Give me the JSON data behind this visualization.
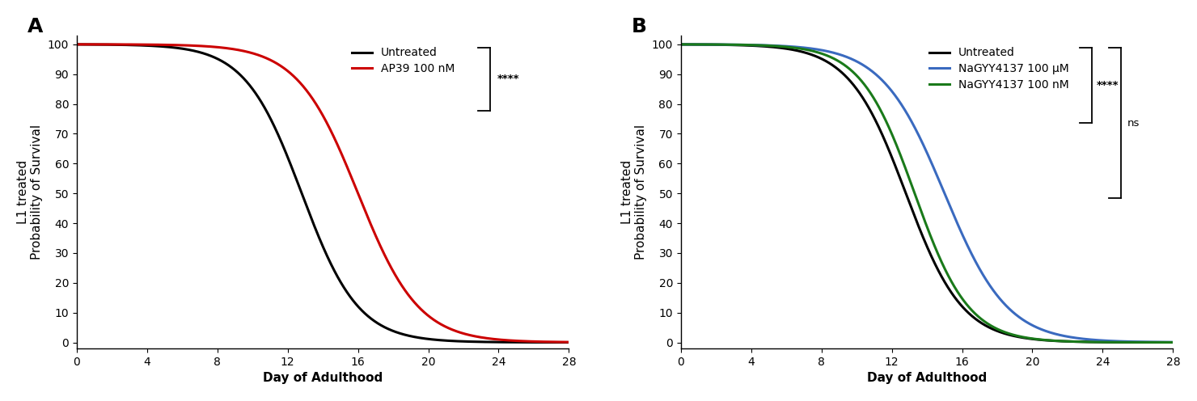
{
  "panel_A": {
    "label": "A",
    "xlabel": "Day of Adulthood",
    "ylabel": "L1 treated\nProbability of Survival",
    "xlim": [
      0,
      28
    ],
    "ylim": [
      -2,
      103
    ],
    "xticks": [
      0,
      4,
      8,
      12,
      16,
      20,
      24,
      28
    ],
    "yticks": [
      0,
      10,
      20,
      30,
      40,
      50,
      60,
      70,
      80,
      90,
      100
    ],
    "lines": [
      {
        "label": "Untreated",
        "color": "#000000",
        "midpoint": 12.8,
        "steepness": 0.62
      },
      {
        "label": "AP39 100 nM",
        "color": "#cc0000",
        "midpoint": 16.0,
        "steepness": 0.58
      }
    ]
  },
  "panel_B": {
    "label": "B",
    "xlabel": "Day of Adulthood",
    "ylabel": "L1 treated\nProbability of Survival",
    "xlim": [
      0,
      28
    ],
    "ylim": [
      -2,
      103
    ],
    "xticks": [
      0,
      4,
      8,
      12,
      16,
      20,
      24,
      28
    ],
    "yticks": [
      0,
      10,
      20,
      30,
      40,
      50,
      60,
      70,
      80,
      90,
      100
    ],
    "lines": [
      {
        "label": "Untreated",
        "color": "#000000",
        "midpoint": 12.8,
        "steepness": 0.62
      },
      {
        "label": "NaGYY4137 100 μM",
        "color": "#3a6abf",
        "midpoint": 15.0,
        "steepness": 0.56
      },
      {
        "label": "NaGYY4137 100 nM",
        "color": "#1a7a1a",
        "midpoint": 13.3,
        "steepness": 0.65
      }
    ]
  },
  "fig_width": 14.8,
  "fig_height": 4.96,
  "dpi": 100,
  "background_color": "#ffffff",
  "font_size_label": 11,
  "font_size_tick": 10,
  "font_size_panel": 18,
  "line_width": 2.2
}
